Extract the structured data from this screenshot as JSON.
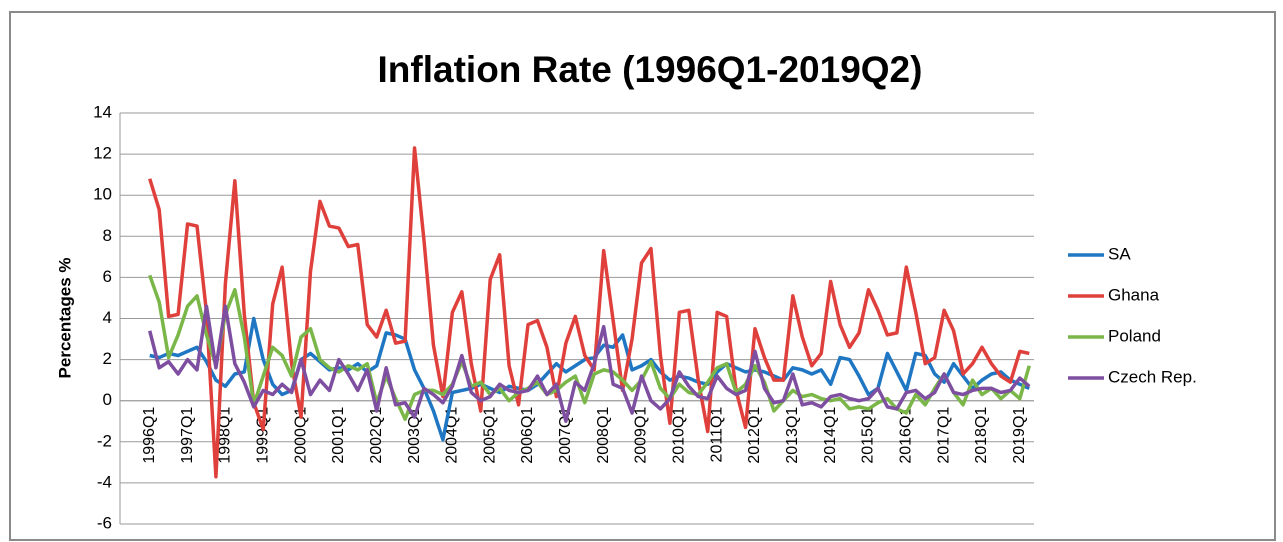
{
  "chart_data": {
    "type": "line",
    "title": "Inflation Rate (1996Q1-2019Q2)",
    "ylabel": "Percentages %",
    "categories": [
      "1996Q1",
      null,
      null,
      null,
      "1997Q1",
      null,
      null,
      null,
      "1998Q1",
      null,
      null,
      null,
      "1999Q1",
      null,
      null,
      null,
      "2000Q1",
      null,
      null,
      null,
      "2001Q1",
      null,
      null,
      null,
      "2002Q1",
      null,
      null,
      null,
      "2003Q1",
      null,
      null,
      null,
      "2004Q1",
      null,
      null,
      null,
      "2005Q1",
      null,
      null,
      null,
      "2006Q1",
      null,
      null,
      null,
      "2007Q1",
      null,
      null,
      null,
      "2008Q1",
      null,
      null,
      null,
      "2009Q1",
      null,
      null,
      null,
      "2010Q1",
      null,
      null,
      null,
      "2011Q1",
      null,
      null,
      null,
      "2012Q1",
      null,
      null,
      null,
      "2013Q1",
      null,
      null,
      null,
      "2014Q1",
      null,
      null,
      null,
      "2015Q1",
      null,
      null,
      null,
      "2016Q1",
      null,
      null,
      null,
      "2017Q1",
      null,
      null,
      null,
      "2018Q1",
      null,
      null,
      null,
      "2019Q1",
      null
    ],
    "series": [
      {
        "name": "SA",
        "color": "#1f77c4",
        "values": [
          2.2,
          2.1,
          2.3,
          2.2,
          2.4,
          2.6,
          1.9,
          1.0,
          0.7,
          1.3,
          1.4,
          4.0,
          2.0,
          0.8,
          0.3,
          0.5,
          2.0,
          2.3,
          1.9,
          1.5,
          1.6,
          1.5,
          1.8,
          1.4,
          1.7,
          3.3,
          3.2,
          3.0,
          1.5,
          0.6,
          -0.5,
          -1.9,
          0.4,
          0.5,
          0.6,
          0.8,
          0.6,
          0.4,
          0.7,
          0.6,
          0.5,
          0.8,
          1.3,
          1.8,
          1.4,
          1.7,
          2.0,
          2.1,
          2.7,
          2.6,
          3.2,
          1.5,
          1.7,
          2.0,
          1.4,
          1.0,
          1.2,
          1.1,
          0.9,
          0.8,
          1.4,
          1.8,
          1.6,
          1.4,
          1.5,
          1.4,
          1.2,
          1.0,
          1.6,
          1.5,
          1.3,
          1.5,
          0.8,
          2.1,
          2.0,
          1.2,
          0.3,
          0.6,
          2.3,
          1.4,
          0.5,
          2.3,
          2.2,
          1.3,
          0.9,
          1.8,
          1.2,
          0.6,
          1.0,
          1.3,
          1.4,
          1.0,
          0.8,
          0.6
        ]
      },
      {
        "name": "Ghana",
        "color": "#e0403c",
        "values": [
          10.8,
          9.3,
          4.1,
          4.2,
          8.6,
          8.5,
          4.3,
          -3.7,
          5.7,
          10.7,
          4.2,
          -0.1,
          -1.4,
          4.7,
          6.5,
          1.8,
          -0.8,
          6.3,
          9.7,
          8.5,
          8.4,
          7.5,
          7.6,
          3.7,
          3.1,
          4.4,
          2.8,
          2.9,
          12.3,
          7.8,
          2.7,
          0.2,
          4.3,
          5.3,
          1.8,
          -0.5,
          5.9,
          7.1,
          1.7,
          -0.2,
          3.7,
          3.9,
          2.6,
          0.2,
          2.8,
          4.1,
          2.2,
          1.5,
          7.3,
          3.9,
          0.5,
          3.0,
          6.7,
          7.4,
          2.2,
          -1.1,
          4.3,
          4.4,
          1.0,
          -1.5,
          4.3,
          4.1,
          0.5,
          -1.3,
          3.5,
          2.1,
          1.0,
          1.0,
          5.1,
          3.1,
          1.7,
          2.3,
          5.8,
          3.7,
          2.6,
          3.3,
          5.4,
          4.4,
          3.2,
          3.3,
          6.5,
          4.3,
          1.8,
          2.1,
          4.4,
          3.4,
          1.3,
          1.8,
          2.6,
          1.8,
          1.2,
          0.9,
          2.4,
          2.3
        ]
      },
      {
        "name": "Poland",
        "color": "#7ab648",
        "values": [
          6.1,
          4.8,
          2.1,
          3.2,
          4.6,
          5.1,
          3.2,
          1.7,
          4.2,
          5.4,
          3.1,
          -0.2,
          1.2,
          2.6,
          2.2,
          1.2,
          3.1,
          3.5,
          2.0,
          1.6,
          1.4,
          1.7,
          1.5,
          1.8,
          -0.1,
          1.2,
          0.1,
          -0.9,
          0.3,
          0.5,
          0.5,
          0.3,
          0.8,
          1.9,
          0.7,
          0.9,
          0.3,
          0.6,
          0.0,
          0.4,
          0.6,
          0.9,
          0.3,
          0.5,
          0.9,
          1.2,
          -0.1,
          1.3,
          1.5,
          1.4,
          1.0,
          0.5,
          1.0,
          1.9,
          0.6,
          0.1,
          0.8,
          0.4,
          0.3,
          0.9,
          1.6,
          1.8,
          0.4,
          0.8,
          1.7,
          0.9,
          -0.5,
          0.0,
          0.5,
          0.2,
          0.3,
          0.1,
          0.0,
          0.1,
          -0.4,
          -0.3,
          -0.4,
          -0.1,
          0.1,
          -0.4,
          -0.6,
          0.3,
          -0.2,
          0.6,
          1.3,
          0.4,
          -0.2,
          1.0,
          0.3,
          0.6,
          0.1,
          0.5,
          0.1,
          1.7
        ]
      },
      {
        "name": "Czech Rep.",
        "color": "#7e4fa0",
        "values": [
          3.4,
          1.6,
          1.9,
          1.3,
          2.0,
          1.5,
          4.6,
          1.6,
          4.6,
          1.8,
          0.9,
          -0.3,
          0.5,
          0.3,
          0.8,
          0.4,
          2.0,
          0.3,
          1.0,
          0.5,
          2.0,
          1.3,
          0.5,
          1.5,
          -0.5,
          1.6,
          -0.2,
          -0.1,
          -0.8,
          0.6,
          0.3,
          -0.1,
          0.7,
          2.2,
          0.4,
          0.0,
          0.2,
          0.8,
          0.5,
          0.4,
          0.5,
          1.2,
          0.3,
          0.8,
          -1.0,
          0.9,
          0.5,
          1.8,
          3.6,
          0.8,
          0.6,
          -0.6,
          1.2,
          0.0,
          -0.4,
          0.1,
          1.4,
          0.7,
          0.2,
          0.1,
          1.2,
          0.6,
          0.3,
          0.5,
          2.4,
          0.6,
          -0.1,
          0.0,
          1.3,
          -0.2,
          -0.1,
          -0.3,
          0.2,
          0.3,
          0.1,
          0.0,
          0.1,
          0.6,
          -0.3,
          -0.4,
          0.4,
          0.5,
          0.1,
          0.4,
          1.3,
          0.4,
          0.3,
          0.5,
          0.6,
          0.6,
          0.4,
          0.5,
          1.1,
          0.7
        ]
      }
    ],
    "ylim": [
      -6,
      14
    ],
    "yticks": [
      -6,
      -4,
      -2,
      0,
      2,
      4,
      6,
      8,
      10,
      12,
      14
    ],
    "grid": true,
    "legend": "right"
  }
}
